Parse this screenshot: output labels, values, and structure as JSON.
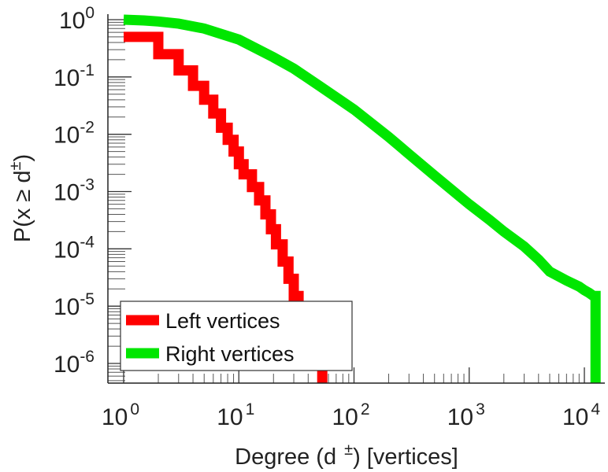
{
  "chart_data": {
    "type": "line",
    "x_scale": "log",
    "y_scale": "log",
    "xlim": [
      1,
      15000
    ],
    "ylim": [
      3e-07,
      1.4
    ],
    "xlabel": {
      "prefix": "Degree (d",
      "sup": "±",
      "suffix": ") [vertices]"
    },
    "ylabel": {
      "prefix": "P(x ≥ d",
      "sup": "±",
      "suffix": ")"
    },
    "x_ticks": [
      {
        "base": "10",
        "exp": "0",
        "value": 1
      },
      {
        "base": "10",
        "exp": "1",
        "value": 10
      },
      {
        "base": "10",
        "exp": "2",
        "value": 100
      },
      {
        "base": "10",
        "exp": "3",
        "value": 1000
      },
      {
        "base": "10",
        "exp": "4",
        "value": 10000
      }
    ],
    "y_ticks": [
      {
        "base": "10",
        "exp": "0",
        "value": 1
      },
      {
        "base": "10",
        "exp": "-1",
        "value": 0.1
      },
      {
        "base": "10",
        "exp": "-2",
        "value": 0.01
      },
      {
        "base": "10",
        "exp": "-3",
        "value": 0.001
      },
      {
        "base": "10",
        "exp": "-4",
        "value": 0.0001
      },
      {
        "base": "10",
        "exp": "-5",
        "value": 1e-05
      },
      {
        "base": "10",
        "exp": "-6",
        "value": 1e-06
      }
    ],
    "grid": false,
    "legend_position": "bottom-left",
    "series": [
      {
        "name": "Left vertices",
        "color": "#ff0000",
        "points": [
          [
            1,
            0.5
          ],
          [
            2,
            0.5
          ],
          [
            2,
            0.25
          ],
          [
            3,
            0.25
          ],
          [
            3,
            0.13
          ],
          [
            4,
            0.13
          ],
          [
            4,
            0.07
          ],
          [
            5,
            0.07
          ],
          [
            5,
            0.04
          ],
          [
            6,
            0.04
          ],
          [
            6,
            0.023
          ],
          [
            7,
            0.023
          ],
          [
            7,
            0.013
          ],
          [
            8,
            0.013
          ],
          [
            8,
            0.008
          ],
          [
            9,
            0.008
          ],
          [
            9,
            0.005
          ],
          [
            10,
            0.005
          ],
          [
            10,
            0.003
          ],
          [
            11,
            0.003
          ],
          [
            11,
            0.002
          ],
          [
            13,
            0.002
          ],
          [
            13,
            0.0012
          ],
          [
            15,
            0.0012
          ],
          [
            15,
            0.0007
          ],
          [
            17,
            0.0007
          ],
          [
            17,
            0.0004
          ],
          [
            19,
            0.0004
          ],
          [
            19,
            0.00022
          ],
          [
            21,
            0.00022
          ],
          [
            21,
            0.00012
          ],
          [
            24,
            0.00012
          ],
          [
            24,
            6e-05
          ],
          [
            27,
            6e-05
          ],
          [
            27,
            3e-05
          ],
          [
            30,
            3e-05
          ],
          [
            30,
            1.5e-05
          ],
          [
            33,
            1.5e-05
          ],
          [
            33,
            8e-06
          ],
          [
            36,
            8e-06
          ],
          [
            36,
            4e-06
          ],
          [
            45,
            4e-06
          ],
          [
            45,
            2e-06
          ],
          [
            53,
            2e-06
          ],
          [
            53,
            3e-07
          ]
        ]
      },
      {
        "name": "Right vertices",
        "color": "#00e600",
        "points": [
          [
            1,
            1
          ],
          [
            1.5,
            0.97
          ],
          [
            2,
            0.93
          ],
          [
            3,
            0.85
          ],
          [
            5,
            0.7
          ],
          [
            10,
            0.45
          ],
          [
            20,
            0.22
          ],
          [
            30,
            0.14
          ],
          [
            50,
            0.07
          ],
          [
            100,
            0.027
          ],
          [
            200,
            0.009
          ],
          [
            300,
            0.0045
          ],
          [
            500,
            0.0019
          ],
          [
            1000,
            0.0006
          ],
          [
            1500,
            0.00032
          ],
          [
            2000,
            0.0002
          ],
          [
            3000,
            0.00011
          ],
          [
            4000,
            6.5e-05
          ],
          [
            5000,
            4e-05
          ],
          [
            7000,
            2.8e-05
          ],
          [
            9000,
            2.2e-05
          ],
          [
            10000,
            1.9e-05
          ],
          [
            11000,
            1.7e-05
          ],
          [
            12000,
            1.5e-05
          ],
          [
            12500,
            1.5e-05
          ],
          [
            12500,
            3e-07
          ]
        ]
      }
    ]
  }
}
